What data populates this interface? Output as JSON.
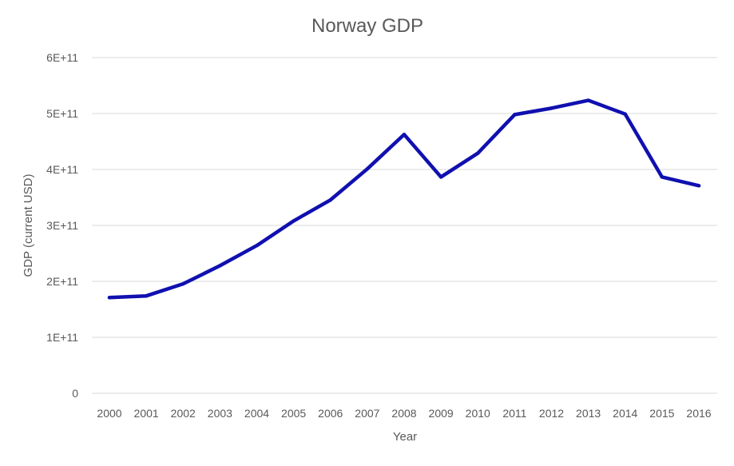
{
  "chart_data": {
    "type": "line",
    "title": "Norway GDP",
    "xlabel": "Year",
    "ylabel": "GDP (current USD)",
    "categories": [
      "2000",
      "2001",
      "2002",
      "2003",
      "2004",
      "2005",
      "2006",
      "2007",
      "2008",
      "2009",
      "2010",
      "2011",
      "2012",
      "2013",
      "2014",
      "2015",
      "2016"
    ],
    "y_tick_labels": [
      "0",
      "1E+11",
      "2E+11",
      "3E+11",
      "4E+11",
      "5E+11",
      "6E+11"
    ],
    "ylim": [
      0,
      600000000000
    ],
    "grid": true,
    "legend": "none",
    "series": [
      {
        "color": "#1010b0",
        "values": [
          171000000000,
          174000000000,
          195500000000,
          228000000000,
          264000000000,
          308000000000,
          345500000000,
          401000000000,
          462500000000,
          386500000000,
          429000000000,
          498000000000,
          509500000000,
          523500000000,
          499000000000,
          386500000000,
          371000000000
        ]
      }
    ]
  }
}
